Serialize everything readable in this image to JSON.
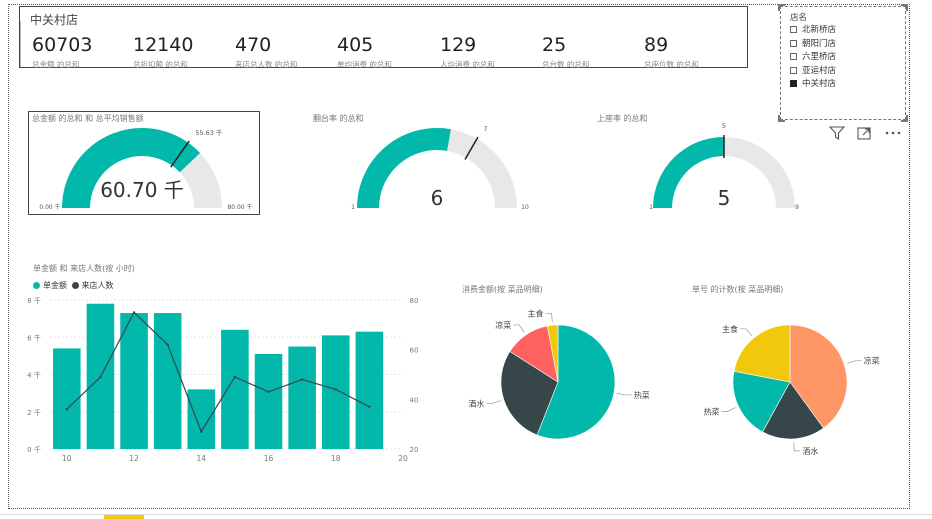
{
  "kpi_card": {
    "title": "中关村店",
    "items": [
      {
        "value": "60703",
        "label": "总金额 的总和"
      },
      {
        "value": "12140",
        "label": "总折扣额 的总和"
      },
      {
        "value": "470",
        "label": "来店总人数 的总和"
      },
      {
        "value": "405",
        "label": "单均消费 的总和"
      },
      {
        "value": "129",
        "label": "人均消费 的总和"
      },
      {
        "value": "25",
        "label": "总台数 的总和"
      },
      {
        "value": "89",
        "label": "总座位数 的总和"
      }
    ]
  },
  "slicer": {
    "title": "店名",
    "items": [
      {
        "label": "北新桥店",
        "checked": false
      },
      {
        "label": "朝阳门店",
        "checked": false
      },
      {
        "label": "六里桥店",
        "checked": false
      },
      {
        "label": "亚运村店",
        "checked": false
      },
      {
        "label": "中关村店",
        "checked": true
      }
    ]
  },
  "toolbar": {
    "filter_icon": "filter-icon",
    "focus_icon": "focus-mode-icon",
    "more_icon": "more-options-icon"
  },
  "colors": {
    "teal": "#01B8AA",
    "dark": "#374649",
    "red": "#FD625E",
    "yellow": "#F2C80F",
    "orange": "#FE9666",
    "gauge_bg": "#E8E8E8"
  },
  "chart_data": [
    {
      "type": "gauge",
      "title": "总金额 的总和 和 总平均销售额",
      "value": 60.7,
      "value_label": "60.70 千",
      "min": 0,
      "max": 80,
      "min_label": "0.00 千",
      "max_label": "80.00 千",
      "target": 55.63,
      "target_label": "55.63 千"
    },
    {
      "type": "gauge",
      "title": "翻台率 的总和",
      "value": 6,
      "value_label": "6",
      "min": 1,
      "max": 10,
      "min_label": "1",
      "max_label": "10",
      "target": 7,
      "target_label": "7"
    },
    {
      "type": "gauge",
      "title": "上座率 的总和",
      "value": 5,
      "value_label": "5",
      "min": 1,
      "max": 9,
      "min_label": "1",
      "max_label": "9",
      "target": 5,
      "target_label": "5"
    },
    {
      "type": "bar",
      "title": "单金额 和 来店人数(按 小时)",
      "x": [
        10,
        11,
        12,
        13,
        14,
        15,
        16,
        17,
        18,
        19
      ],
      "x_ticks": [
        10,
        12,
        14,
        16,
        18,
        20
      ],
      "xlim": [
        9.5,
        20
      ],
      "series": [
        {
          "name": "单金额",
          "kind": "bar",
          "axis": "left",
          "values": [
            5.4,
            7.8,
            7.3,
            7.3,
            3.2,
            6.4,
            5.1,
            5.5,
            6.1,
            6.3
          ]
        },
        {
          "name": "来店人数",
          "kind": "line",
          "axis": "right",
          "values": [
            36,
            49,
            75,
            62,
            27,
            49,
            43,
            48,
            44,
            37
          ]
        }
      ],
      "y_left": {
        "min": 0,
        "max": 8,
        "ticks": [
          0,
          2,
          4,
          6,
          8
        ],
        "tick_labels": [
          "0 千",
          "2 千",
          "4 千",
          "6 千",
          "8 千"
        ]
      },
      "y_right": {
        "min": 20,
        "max": 80,
        "ticks": [
          20,
          40,
          60,
          80
        ],
        "tick_labels": [
          "20",
          "40",
          "60",
          "80"
        ]
      },
      "legend_position": "top-left"
    },
    {
      "type": "pie",
      "title": "消费金额(按 菜品明细)",
      "slices": [
        {
          "label": "热菜",
          "value": 56,
          "color": "#01B8AA"
        },
        {
          "label": "酒水",
          "value": 28,
          "color": "#374649"
        },
        {
          "label": "凉菜",
          "value": 13,
          "color": "#FD625E"
        },
        {
          "label": "主食",
          "value": 3,
          "color": "#F2C80F"
        }
      ]
    },
    {
      "type": "pie",
      "title": "单号 的计数(按 菜品明细)",
      "slices": [
        {
          "label": "凉菜",
          "value": 40,
          "color": "#FE9666"
        },
        {
          "label": "酒水",
          "value": 18,
          "color": "#374649"
        },
        {
          "label": "热菜",
          "value": 20,
          "color": "#01B8AA"
        },
        {
          "label": "主食",
          "value": 22,
          "color": "#F2C80F"
        }
      ]
    }
  ]
}
